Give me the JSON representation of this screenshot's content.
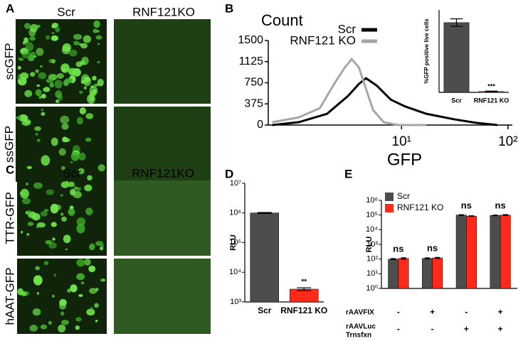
{
  "panel_labels": [
    "A",
    "B",
    "C",
    "D",
    "E"
  ],
  "image_panels": [
    {
      "columns": [
        "Scr",
        "RNF121KO"
      ],
      "rows": [
        "scGFP",
        "ssGFP"
      ]
    },
    {
      "columns": [
        "Scr",
        "RNF121KO"
      ],
      "rows": [
        "TTR-GFP",
        "hAAT-GFP"
      ]
    }
  ],
  "chart_data": [
    {
      "type": "line",
      "title": "Count",
      "x_label": "GFP",
      "log_x": true,
      "xlim": [
        0.56,
        110
      ],
      "xticks": [
        {
          "value": 10,
          "label": "10¹"
        },
        {
          "value": 100,
          "label": "10²"
        }
      ],
      "ylim": [
        0,
        1500
      ],
      "yticks": [
        0,
        375,
        750,
        1125,
        1500
      ],
      "series": [
        {
          "name": "Scr",
          "color": "#000000",
          "x": [
            0.61,
            1.08,
            2.0,
            3.16,
            3.98,
            4.64,
            5.85,
            7.94,
            10.8,
            17.1,
            31.6,
            50.1,
            79.4
          ],
          "values": [
            0,
            50,
            200,
            520,
            730,
            830,
            700,
            450,
            330,
            200,
            100,
            40,
            0
          ]
        },
        {
          "name": "RNF121 KO",
          "color": "#a6a6a6",
          "x": [
            0.61,
            1.08,
            1.71,
            2.33,
            2.93,
            3.41,
            3.98,
            4.64,
            5.41,
            6.81,
            9.27,
            17.1
          ],
          "values": [
            50,
            135,
            300,
            730,
            1020,
            1170,
            1020,
            640,
            265,
            50,
            0,
            0
          ]
        }
      ]
    },
    {
      "type": "bar",
      "y_label": "%GFP positive live cells",
      "categories": [
        "Scr",
        "RNF121 KO"
      ],
      "values": [
        22,
        0.3
      ],
      "errors": [
        1.2,
        0.1
      ],
      "colors": [
        "#4d4d4d",
        "#ff2a1a"
      ],
      "annotations": [
        null,
        "***"
      ],
      "ylim": [
        0,
        26
      ]
    },
    {
      "type": "bar",
      "y_label": "RLU",
      "categories": [
        "Scr",
        "RNF121 KO"
      ],
      "values": [
        1000000,
        2700
      ],
      "errors": [
        40000,
        300
      ],
      "colors": [
        "#4d4d4d",
        "#ff2a1a"
      ],
      "annotations": [
        null,
        "**"
      ],
      "log_y": true,
      "ylim": [
        1000,
        10000000
      ],
      "yticks": [
        {
          "value": 1000,
          "label": "10³"
        },
        {
          "value": 10000,
          "label": "10⁴"
        },
        {
          "value": 100000,
          "label": "10⁵"
        },
        {
          "value": 1000000,
          "label": "10⁶"
        },
        {
          "value": 10000000,
          "label": "10⁷"
        }
      ]
    },
    {
      "type": "bar",
      "y_label": "RLU",
      "categories": [
        null,
        null,
        null,
        null
      ],
      "series": [
        {
          "name": "Scr",
          "color": "#4d4d4d",
          "values": [
            100,
            110,
            100000,
            95000
          ],
          "errors": [
            8,
            10,
            5000,
            5000
          ]
        },
        {
          "name": "RNF121 KO",
          "color": "#ff2a1a",
          "values": [
            110,
            120,
            85000,
            100000
          ],
          "errors": [
            12,
            10,
            4000,
            6000
          ]
        }
      ],
      "annotations": [
        "ns",
        "ns",
        "ns",
        "ns"
      ],
      "legend": "upper left",
      "log_y": true,
      "ylim": [
        1,
        1000000
      ],
      "yticks": [
        {
          "value": 1,
          "label": "10⁰"
        },
        {
          "value": 10,
          "label": "10¹"
        },
        {
          "value": 100,
          "label": "10²"
        },
        {
          "value": 1000,
          "label": "10³"
        },
        {
          "value": 10000,
          "label": "10⁴"
        },
        {
          "value": 100000,
          "label": "10⁵"
        },
        {
          "value": 1000000,
          "label": "10⁶"
        }
      ],
      "conditions": [
        {
          "name": [
            "rAAVFIX"
          ],
          "values": [
            "-",
            "+",
            "-",
            "+"
          ]
        },
        {
          "name": [
            "rAAVLuc",
            "Trnsfxn"
          ],
          "values": [
            "-",
            "-",
            "+",
            "+"
          ]
        }
      ]
    }
  ]
}
